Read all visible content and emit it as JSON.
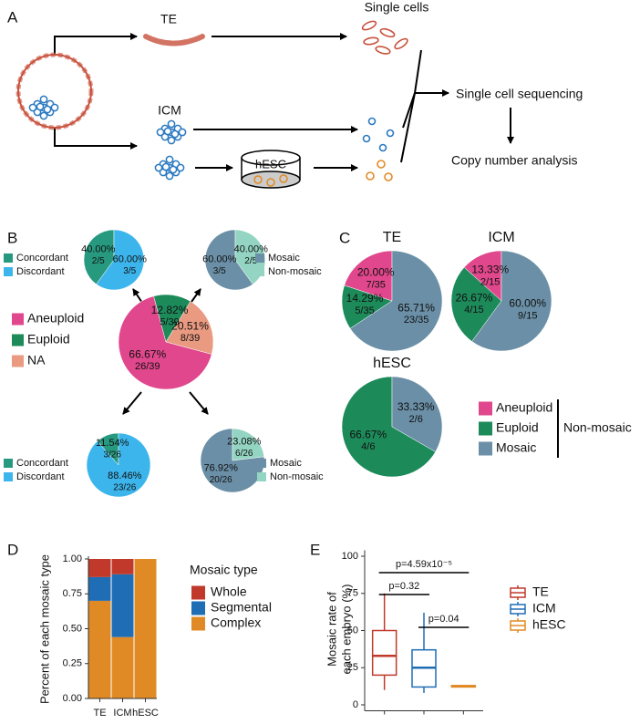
{
  "panel_labels": [
    "A",
    "B",
    "C",
    "D",
    "E"
  ],
  "diagram": {
    "te": "TE",
    "single_cells": "Single cells",
    "icm": "ICM",
    "hesc": "hESC",
    "sequencing": "Single cell sequencing",
    "analysis": "Copy number analysis"
  },
  "chart_data": [
    {
      "type": "pie",
      "categories": [
        "Aneuploid",
        "Euploid",
        "NA"
      ],
      "values": [
        66.67,
        12.82,
        20.51
      ],
      "value_labels": [
        "66.67%",
        "12.82%",
        "20.51%"
      ],
      "count_labels": [
        "26/39",
        "5/39",
        "8/39"
      ],
      "colors": [
        "#e0478c",
        "#1d8a5a",
        "#e99a80"
      ]
    },
    {
      "type": "pie",
      "categories": [
        "Concordant",
        "Discordant"
      ],
      "values": [
        40.0,
        60.0
      ],
      "value_labels": [
        "40.00%",
        "60.00%"
      ],
      "count_labels": [
        "2/5",
        "3/5"
      ],
      "colors": [
        "#27997f",
        "#3cb5ec"
      ]
    },
    {
      "type": "pie",
      "categories": [
        "Mosaic",
        "Non-mosaic"
      ],
      "values": [
        60.0,
        40.0
      ],
      "value_labels": [
        "60.00%",
        "40.00%"
      ],
      "count_labels": [
        "3/5",
        "2/5"
      ],
      "colors": [
        "#6a8fa6",
        "#93d5c2"
      ]
    },
    {
      "type": "pie",
      "categories": [
        "Concordant",
        "Discordant"
      ],
      "values": [
        11.54,
        88.46
      ],
      "value_labels": [
        "11.54%",
        "88.46%"
      ],
      "count_labels": [
        "3/26",
        "23/26"
      ],
      "colors": [
        "#27997f",
        "#3cb5ec"
      ]
    },
    {
      "type": "pie",
      "categories": [
        "Mosaic",
        "Non-mosaic"
      ],
      "values": [
        76.92,
        23.08
      ],
      "value_labels": [
        "76.92%",
        "23.08%"
      ],
      "count_labels": [
        "20/26",
        "6/26"
      ],
      "colors": [
        "#6a8fa6",
        "#93d5c2"
      ]
    },
    {
      "type": "pie",
      "title": "TE",
      "categories": [
        "Aneuploid",
        "Euploid",
        "Mosaic"
      ],
      "values": [
        20.0,
        14.29,
        65.71
      ],
      "value_labels": [
        "20.00%",
        "14.29%",
        "65.71%"
      ],
      "count_labels": [
        "7/35",
        "5/35",
        "23/35"
      ],
      "colors": [
        "#e0478c",
        "#1d8a5a",
        "#6a8fa6"
      ],
      "legend_group_label": "Non-mosaic"
    },
    {
      "type": "pie",
      "title": "ICM",
      "categories": [
        "Aneuploid",
        "Euploid",
        "Mosaic"
      ],
      "values": [
        13.33,
        26.67,
        60.0
      ],
      "value_labels": [
        "13.33%",
        "26.67%",
        "60.00%"
      ],
      "count_labels": [
        "2/15",
        "4/15",
        "9/15"
      ],
      "colors": [
        "#e0478c",
        "#1d8a5a",
        "#6a8fa6"
      ]
    },
    {
      "type": "pie",
      "title": "hESC",
      "categories": [
        "Euploid",
        "Mosaic"
      ],
      "values": [
        66.67,
        33.33
      ],
      "value_labels": [
        "66.67%",
        "33.33%"
      ],
      "count_labels": [
        "4/6",
        "2/6"
      ],
      "colors": [
        "#1d8a5a",
        "#6a8fa6"
      ]
    },
    {
      "type": "bar",
      "stacked": true,
      "categories": [
        "TE",
        "ICM",
        "hESC"
      ],
      "y_label": "Percent of each mosaic type",
      "legend_title": "Mosaic type",
      "series": [
        {
          "name": "Whole",
          "color": "#c0392b",
          "values": [
            0.13,
            0.11,
            0
          ]
        },
        {
          "name": "Segmental",
          "color": "#1f6db5",
          "values": [
            0.17,
            0.45,
            0
          ]
        },
        {
          "name": "Complex",
          "color": "#e08a25",
          "values": [
            0.7,
            0.44,
            1.0
          ]
        }
      ],
      "ylim": [
        0,
        1
      ],
      "yticks": [
        {
          "value": 0,
          "label": "0.00"
        },
        {
          "value": 0.25,
          "label": "0.25"
        },
        {
          "value": 0.5,
          "label": "0.50"
        },
        {
          "value": 0.75,
          "label": "0.75"
        },
        {
          "value": 1,
          "label": "1.00"
        }
      ]
    },
    {
      "type": "box",
      "categories": [
        "TE",
        "ICM",
        "hESC"
      ],
      "colors": [
        "#c0392b",
        "#1f6db5",
        "#e08a25"
      ],
      "y_label": [
        "Mosaic rate of",
        "each embryo (%)"
      ],
      "min": [
        10,
        8,
        12
      ],
      "q1": [
        20,
        12,
        12
      ],
      "median": [
        33,
        25,
        12.5
      ],
      "q3": [
        50,
        37,
        13
      ],
      "max": [
        75,
        62,
        13
      ],
      "ylim": [
        -4,
        104
      ],
      "yticks": [
        0,
        25,
        50,
        75,
        100
      ],
      "annotations": [
        "p=4.59x10⁻⁵",
        "p=0.32",
        "p=0.04"
      ]
    }
  ]
}
